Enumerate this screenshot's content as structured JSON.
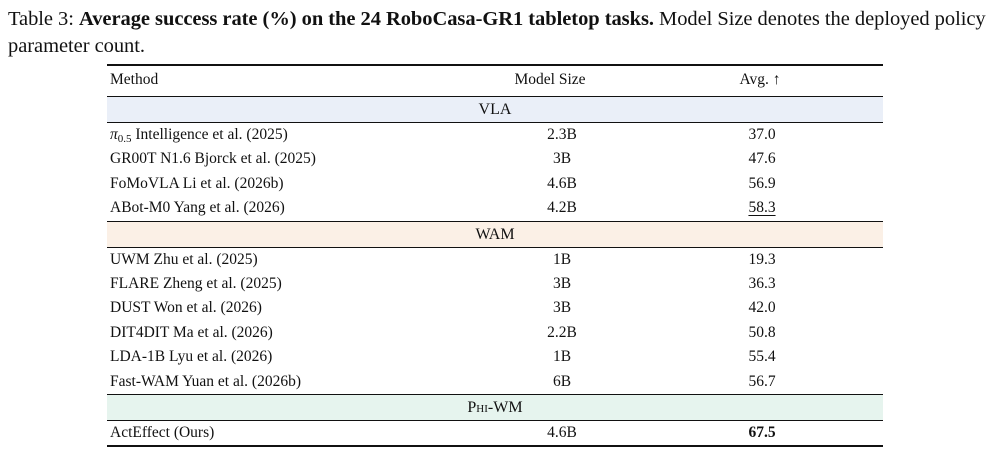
{
  "caption": {
    "label": "Table 3:",
    "bold_text": "Average success rate (%) on the 24 RoboCasa-GR1 tabletop tasks.",
    "rest_text": "Model Size denotes the deployed policy parameter count."
  },
  "table": {
    "headers": {
      "method": "Method",
      "size": "Model Size",
      "avg": "Avg. ↑"
    },
    "groups": {
      "vla": "VLA",
      "wam": "WAM",
      "phi": "Phi-WM"
    },
    "vla_rows": [
      {
        "method_symbol": "π",
        "method_sub": "0.5",
        "method_rest": "Intelligence et al. (2025)",
        "size": "2.3B",
        "avg": "37.0"
      },
      {
        "method": "GR00T N1.6 Bjorck et al. (2025)",
        "size": "3B",
        "avg": "47.6"
      },
      {
        "method": "FoMoVLA Li et al. (2026b)",
        "size": "4.6B",
        "avg": "56.9"
      },
      {
        "method": "ABot-M0 Yang et al. (2026)",
        "size": "4.2B",
        "avg": "58.3"
      }
    ],
    "wam_rows": [
      {
        "method": "UWM Zhu et al. (2025)",
        "size": "1B",
        "avg": "19.3"
      },
      {
        "method": "FLARE Zheng et al. (2025)",
        "size": "3B",
        "avg": "36.3"
      },
      {
        "method": "DUST Won et al. (2026)",
        "size": "3B",
        "avg": "42.0"
      },
      {
        "method": "DIT4DIT Ma et al. (2026)",
        "size": "2.2B",
        "avg": "50.8"
      },
      {
        "method": "LDA-1B Lyu et al. (2026)",
        "size": "1B",
        "avg": "55.4"
      },
      {
        "method": "Fast-WAM Yuan et al. (2026b)",
        "size": "6B",
        "avg": "56.7"
      }
    ],
    "phi_rows": [
      {
        "method": "ActEffect (Ours)",
        "size": "4.6B",
        "avg": "67.5"
      }
    ]
  }
}
